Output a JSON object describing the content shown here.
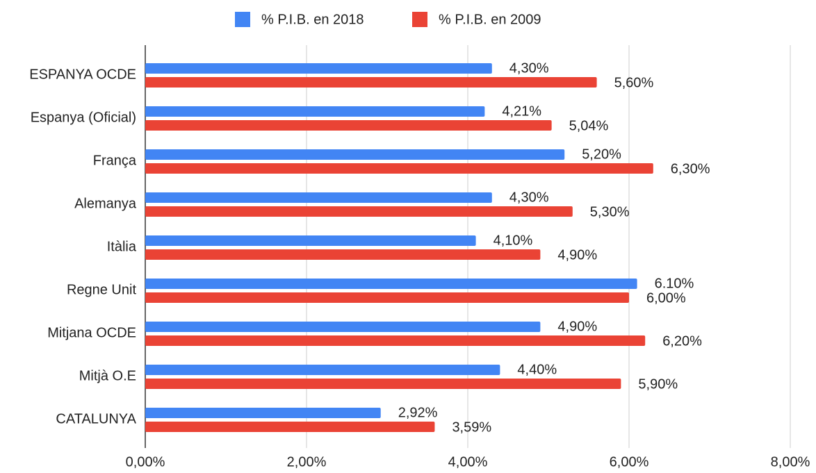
{
  "chart_data": {
    "type": "bar",
    "orientation": "horizontal",
    "categories": [
      "ESPANYA OCDE",
      "Espanya (Oficial)",
      "França",
      "Alemanya",
      "Itàlia",
      "Regne Unit",
      "Mitjana OCDE",
      "Mitjà O.E",
      "CATALUNYA"
    ],
    "series": [
      {
        "name": "% P.I.B. en 2018",
        "color": "#4285f4",
        "label_color": "#5b93f0",
        "values": [
          4.3,
          4.21,
          5.2,
          4.3,
          4.1,
          6.1,
          4.9,
          4.4,
          2.92
        ],
        "value_labels": [
          "4,30%",
          "4,21%",
          "5,20%",
          "4,30%",
          "4,10%",
          "6.10%",
          "4,90%",
          "4,40%",
          "2,92%"
        ]
      },
      {
        "name": "% P.I.B. en 2009",
        "color": "#ea4335",
        "label_color": "#e8473a",
        "values": [
          5.6,
          5.04,
          6.3,
          5.3,
          4.9,
          6.0,
          6.2,
          5.9,
          3.59
        ],
        "value_labels": [
          "5,60%",
          "5,04%",
          "6,30%",
          "5,30%",
          "4,90%",
          "6,00%",
          "6,20%",
          "5,90%",
          "3,59%"
        ]
      }
    ],
    "xlim": [
      0,
      8
    ],
    "xticks": [
      {
        "value": 0,
        "label": "0,00%"
      },
      {
        "value": 2,
        "label": "2,00%"
      },
      {
        "value": 4,
        "label": "4,00%"
      },
      {
        "value": 6,
        "label": "6,00%"
      },
      {
        "value": 8,
        "label": "8,00%"
      }
    ],
    "grid": true,
    "legend": "top"
  }
}
